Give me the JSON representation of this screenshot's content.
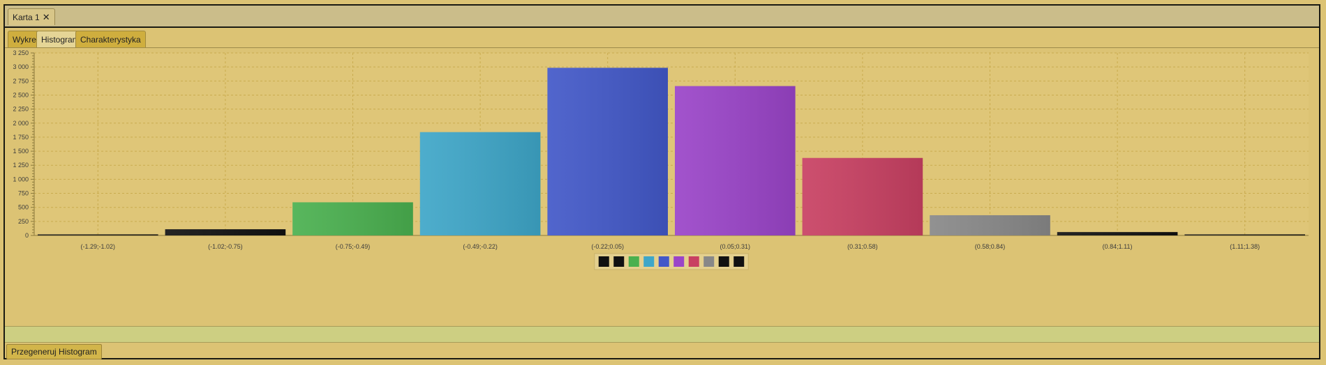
{
  "document_tab": {
    "label": "Karta 1",
    "close_icon": "close-icon"
  },
  "tabs": [
    {
      "label": "Wykres",
      "active": false
    },
    {
      "label": "Histogram",
      "active": true
    },
    {
      "label": "Charakterystyka",
      "active": false
    }
  ],
  "regen_button": {
    "label": "Przegeneruj Histogram"
  },
  "chart_data": {
    "type": "bar",
    "categories": [
      "(-1.29;-1.02)",
      "(-1.02;-0.75)",
      "(-0.75;-0.49)",
      "(-0.49;-0.22)",
      "(-0.22;0.05)",
      "(0.05;0.31)",
      "(0.31;0.58)",
      "(0.58;0.84)",
      "(0.84;1.11)",
      "(1.11;1.38)"
    ],
    "values": [
      15,
      110,
      590,
      1840,
      2985,
      2660,
      1380,
      360,
      60,
      12
    ],
    "colors": [
      "#111111",
      "#111111",
      "#4ab04f",
      "#3ea6c8",
      "#4258c8",
      "#9a44c8",
      "#c84062",
      "#888888",
      "#111111",
      "#111111"
    ],
    "ylim": [
      0,
      3250
    ],
    "yticks": [
      0,
      250,
      500,
      750,
      1000,
      1250,
      1500,
      1750,
      2000,
      2250,
      2500,
      2750,
      3000,
      3250
    ],
    "ytick_labels": [
      "0",
      "250",
      "500",
      "750",
      "1 000",
      "1 250",
      "1 500",
      "1 750",
      "2 000",
      "2 250",
      "2 500",
      "2 750",
      "3 000",
      "3 250"
    ],
    "title": "",
    "xlabel": "",
    "ylabel": "",
    "grid": true,
    "legend_position": "bottom-center"
  }
}
